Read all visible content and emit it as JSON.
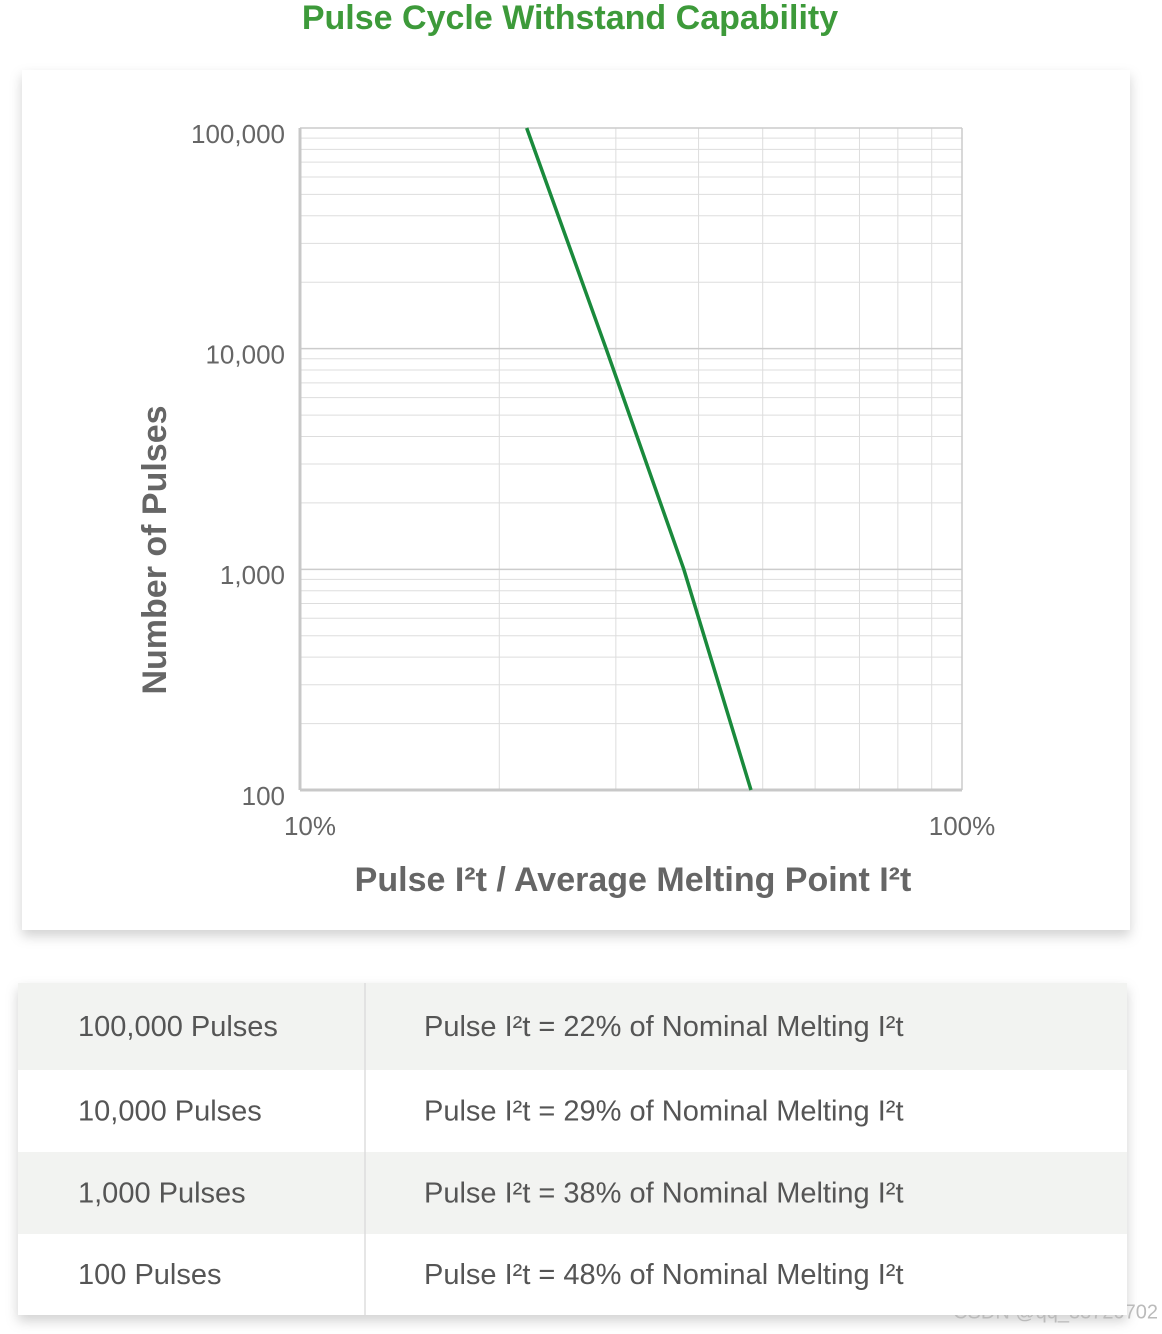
{
  "chart_data": {
    "type": "line",
    "title": "Pulse Cycle Withstand Capability",
    "x_label": "Pulse I²t / Average Melting Point I²t",
    "y_label": "Number of Pulses",
    "x": [
      22,
      29,
      38,
      48
    ],
    "series": [
      {
        "color": "#1a8a3c",
        "values": [
          100000,
          10000,
          1000,
          100
        ]
      }
    ],
    "xlim": [
      10,
      100
    ],
    "ylim": [
      100,
      100000
    ],
    "xticks": [
      {
        "value": 10,
        "label": "10%"
      },
      {
        "value": 100,
        "label": "100%"
      }
    ],
    "yticks": [
      {
        "value": 100,
        "label": "100"
      },
      {
        "value": 1000,
        "label": "1,000"
      },
      {
        "value": 10000,
        "label": "10,000"
      },
      {
        "value": 100000,
        "label": "100,000"
      }
    ],
    "xlog": true,
    "ylog": true,
    "grid": true,
    "minor_grid": true
  },
  "table": {
    "rows": [
      [
        "100,000 Pulses",
        "Pulse I²t = 22% of Nominal Melting I²t"
      ],
      [
        "10,000 Pulses",
        "Pulse I²t = 29% of Nominal Melting I²t"
      ],
      [
        "1,000 Pulses",
        "Pulse I²t = 38% of Nominal Melting I²t"
      ],
      [
        "100 Pulses",
        "Pulse I²t = 48% of Nominal Melting I²t"
      ]
    ]
  },
  "watermark": "CSDN @qq_33720702"
}
